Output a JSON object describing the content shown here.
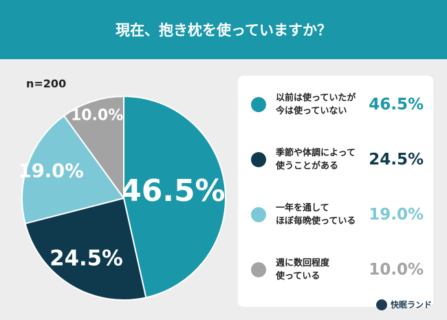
{
  "chart_data": {
    "type": "pie",
    "title": "現在、抱き枕を使っていますか？",
    "note": "n=200",
    "categories": [
      "以前は使っていたが\n今は使っていない",
      "季節や体調によって\n使うことがある",
      "一年を通して\nほぼ毎晩使っている",
      "週に数回程度\n使っている"
    ],
    "values": [
      46.5,
      24.5,
      19.0,
      10.0
    ],
    "value_labels": [
      "46.5%",
      "24.5%",
      "19.0%",
      "10.0%"
    ],
    "colors": [
      "#1a97a8",
      "#0f3a4e",
      "#7dc8d6",
      "#a3a3a3"
    ],
    "brand": "快眠ランド"
  }
}
